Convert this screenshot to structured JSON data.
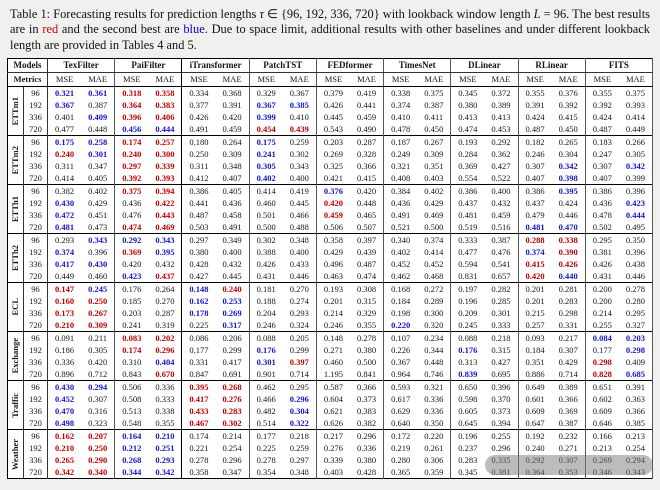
{
  "caption": {
    "segments": [
      {
        "t": "Table 1: Forecasting results for prediction lengths "
      },
      {
        "t": "τ",
        "i": true
      },
      {
        "t": " ∈ {96, 192, 336, 720} with lookback window length "
      },
      {
        "t": "L",
        "i": true
      },
      {
        "t": " = 96. The best results are in "
      },
      {
        "t": "red",
        "c": "#d10000"
      },
      {
        "t": " and the second best are "
      },
      {
        "t": "blue",
        "c": "#0000d6"
      },
      {
        "t": ". Due to space limit, additional results with other baselines and under different lookback length are provided in Tables 4 and 5."
      }
    ]
  },
  "colors": {
    "best": "#c00000",
    "second": "#1414cc"
  },
  "table": {
    "models_label": "Models",
    "metrics_label": "Metrics",
    "mse_label": "MSE",
    "mae_label": "MAE",
    "models": [
      "TexFilter",
      "PaiFilter",
      "iTransformer",
      "PatchTST",
      "FEDformer",
      "TimesNet",
      "DLinear",
      "RLinear",
      "FITS"
    ],
    "ours_count": 2,
    "datasets": [
      {
        "name": "ETTm1",
        "rows": [
          {
            "horizon": "96",
            "values": [
              "0.321",
              "0.361",
              "0.318",
              "0.358",
              "0.334",
              "0.368",
              "0.329",
              "0.367",
              "0.379",
              "0.419",
              "0.338",
              "0.375",
              "0.345",
              "0.372",
              "0.355",
              "0.376",
              "0.355",
              "0.375"
            ]
          },
          {
            "horizon": "192",
            "values": [
              "0.367",
              "0.387",
              "0.364",
              "0.383",
              "0.377",
              "0.391",
              "0.367",
              "0.385",
              "0.426",
              "0.441",
              "0.374",
              "0.387",
              "0.380",
              "0.389",
              "0.391",
              "0.392",
              "0.392",
              "0.393"
            ]
          },
          {
            "horizon": "336",
            "values": [
              "0.401",
              "0.409",
              "0.396",
              "0.406",
              "0.426",
              "0.420",
              "0.399",
              "0.410",
              "0.445",
              "0.459",
              "0.410",
              "0.411",
              "0.413",
              "0.413",
              "0.424",
              "0.415",
              "0.424",
              "0.414"
            ]
          },
          {
            "horizon": "720",
            "values": [
              "0.477",
              "0.448",
              "0.456",
              "0.444",
              "0.491",
              "0.459",
              "0.454",
              "0.439",
              "0.543",
              "0.490",
              "0.478",
              "0.450",
              "0.474",
              "0.453",
              "0.487",
              "0.450",
              "0.487",
              "0.449"
            ]
          }
        ]
      },
      {
        "name": "ETTm2",
        "rows": [
          {
            "horizon": "96",
            "values": [
              "0.175",
              "0.258",
              "0.174",
              "0.257",
              "0.180",
              "0.264",
              "0.175",
              "0.259",
              "0.203",
              "0.287",
              "0.187",
              "0.267",
              "0.193",
              "0.292",
              "0.182",
              "0.265",
              "0.183",
              "0.266"
            ]
          },
          {
            "horizon": "192",
            "values": [
              "0.240",
              "0.301",
              "0.240",
              "0.300",
              "0.250",
              "0.309",
              "0.241",
              "0.302",
              "0.269",
              "0.328",
              "0.249",
              "0.309",
              "0.284",
              "0.362",
              "0.246",
              "0.304",
              "0.247",
              "0.305"
            ]
          },
          {
            "horizon": "336",
            "values": [
              "0.311",
              "0.347",
              "0.297",
              "0.339",
              "0.311",
              "0.348",
              "0.305",
              "0.343",
              "0.325",
              "0.366",
              "0.321",
              "0.351",
              "0.369",
              "0.427",
              "0.307",
              "0.342",
              "0.307",
              "0.342"
            ]
          },
          {
            "horizon": "720",
            "values": [
              "0.414",
              "0.405",
              "0.392",
              "0.393",
              "0.412",
              "0.407",
              "0.402",
              "0.400",
              "0.421",
              "0.415",
              "0.408",
              "0.403",
              "0.554",
              "0.522",
              "0.407",
              "0.398",
              "0.407",
              "0.399"
            ]
          }
        ]
      },
      {
        "name": "ETTh1",
        "rows": [
          {
            "horizon": "96",
            "values": [
              "0.382",
              "0.402",
              "0.375",
              "0.394",
              "0.386",
              "0.405",
              "0.414",
              "0.419",
              "0.376",
              "0.420",
              "0.384",
              "0.402",
              "0.386",
              "0.400",
              "0.386",
              "0.395",
              "0.386",
              "0.396"
            ]
          },
          {
            "horizon": "192",
            "values": [
              "0.430",
              "0.429",
              "0.436",
              "0.422",
              "0.441",
              "0.436",
              "0.460",
              "0.445",
              "0.420",
              "0.448",
              "0.436",
              "0.429",
              "0.437",
              "0.432",
              "0.437",
              "0.424",
              "0.436",
              "0.423"
            ]
          },
          {
            "horizon": "336",
            "values": [
              "0.472",
              "0.451",
              "0.476",
              "0.443",
              "0.487",
              "0.458",
              "0.501",
              "0.466",
              "0.459",
              "0.465",
              "0.491",
              "0.469",
              "0.481",
              "0.459",
              "0.479",
              "0.446",
              "0.478",
              "0.444"
            ]
          },
          {
            "horizon": "720",
            "values": [
              "0.481",
              "0.473",
              "0.474",
              "0.469",
              "0.503",
              "0.491",
              "0.500",
              "0.488",
              "0.506",
              "0.507",
              "0.521",
              "0.500",
              "0.519",
              "0.516",
              "0.481",
              "0.470",
              "0.502",
              "0.495"
            ]
          }
        ]
      },
      {
        "name": "ETTh2",
        "rows": [
          {
            "horizon": "96",
            "values": [
              "0.293",
              "0.343",
              "0.292",
              "0.343",
              "0.297",
              "0.349",
              "0.302",
              "0.348",
              "0.358",
              "0.397",
              "0.340",
              "0.374",
              "0.333",
              "0.387",
              "0.288",
              "0.338",
              "0.295",
              "0.350"
            ]
          },
          {
            "horizon": "192",
            "values": [
              "0.374",
              "0.396",
              "0.369",
              "0.395",
              "0.380",
              "0.400",
              "0.388",
              "0.400",
              "0.429",
              "0.439",
              "0.402",
              "0.414",
              "0.477",
              "0.476",
              "0.374",
              "0.390",
              "0.381",
              "0.396"
            ]
          },
          {
            "horizon": "336",
            "values": [
              "0.417",
              "0.430",
              "0.420",
              "0.432",
              "0.428",
              "0.432",
              "0.426",
              "0.433",
              "0.496",
              "0.487",
              "0.452",
              "0.452",
              "0.594",
              "0.541",
              "0.415",
              "0.426",
              "0.426",
              "0.438"
            ]
          },
          {
            "horizon": "720",
            "values": [
              "0.449",
              "0.460",
              "0.423",
              "0.437",
              "0.427",
              "0.445",
              "0.431",
              "0.446",
              "0.463",
              "0.474",
              "0.462",
              "0.468",
              "0.831",
              "0.657",
              "0.420",
              "0.440",
              "0.431",
              "0.446"
            ]
          }
        ]
      },
      {
        "name": "ECL",
        "rows": [
          {
            "horizon": "96",
            "values": [
              "0.147",
              "0.245",
              "0.176",
              "0.264",
              "0.148",
              "0.240",
              "0.181",
              "0.270",
              "0.193",
              "0.308",
              "0.168",
              "0.272",
              "0.197",
              "0.282",
              "0.201",
              "0.281",
              "0.200",
              "0.278"
            ]
          },
          {
            "horizon": "192",
            "values": [
              "0.160",
              "0.250",
              "0.185",
              "0.270",
              "0.162",
              "0.253",
              "0.188",
              "0.274",
              "0.201",
              "0.315",
              "0.184",
              "0.289",
              "0.196",
              "0.285",
              "0.201",
              "0.283",
              "0.200",
              "0.280"
            ]
          },
          {
            "horizon": "336",
            "values": [
              "0.173",
              "0.267",
              "0.203",
              "0.287",
              "0.178",
              "0.269",
              "0.204",
              "0.293",
              "0.214",
              "0.329",
              "0.198",
              "0.300",
              "0.209",
              "0.301",
              "0.215",
              "0.298",
              "0.214",
              "0.295"
            ]
          },
          {
            "horizon": "720",
            "values": [
              "0.210",
              "0.309",
              "0.241",
              "0.319",
              "0.225",
              "0.317",
              "0.246",
              "0.324",
              "0.246",
              "0.355",
              "0.220",
              "0.320",
              "0.245",
              "0.333",
              "0.257",
              "0.331",
              "0.255",
              "0.327"
            ]
          }
        ]
      },
      {
        "name": "Exchange",
        "rows": [
          {
            "horizon": "96",
            "values": [
              "0.091",
              "0.211",
              "0.083",
              "0.202",
              "0.086",
              "0.206",
              "0.088",
              "0.205",
              "0.148",
              "0.278",
              "0.107",
              "0.234",
              "0.088",
              "0.218",
              "0.093",
              "0.217",
              "0.084",
              "0.203"
            ]
          },
          {
            "horizon": "192",
            "values": [
              "0.186",
              "0.305",
              "0.174",
              "0.296",
              "0.177",
              "0.299",
              "0.176",
              "0.299",
              "0.271",
              "0.380",
              "0.226",
              "0.344",
              "0.176",
              "0.315",
              "0.184",
              "0.307",
              "0.177",
              "0.298"
            ]
          },
          {
            "horizon": "336",
            "values": [
              "0.336",
              "0.420",
              "0.310",
              "0.404",
              "0.331",
              "0.417",
              "0.301",
              "0.397",
              "0.460",
              "0.500",
              "0.367",
              "0.448",
              "0.313",
              "0.427",
              "0.351",
              "0.429",
              "0.298",
              "0.409"
            ]
          },
          {
            "horizon": "720",
            "values": [
              "0.896",
              "0.712",
              "0.843",
              "0.670",
              "0.847",
              "0.691",
              "0.901",
              "0.714",
              "1.195",
              "0.841",
              "0.964",
              "0.746",
              "0.839",
              "0.695",
              "0.886",
              "0.714",
              "0.828",
              "0.685"
            ]
          }
        ]
      },
      {
        "name": "Traffic",
        "rows": [
          {
            "horizon": "96",
            "values": [
              "0.430",
              "0.294",
              "0.506",
              "0.336",
              "0.395",
              "0.268",
              "0.462",
              "0.295",
              "0.587",
              "0.366",
              "0.593",
              "0.321",
              "0.650",
              "0.396",
              "0.649",
              "0.389",
              "0.651",
              "0.391"
            ]
          },
          {
            "horizon": "192",
            "values": [
              "0.452",
              "0.307",
              "0.508",
              "0.333",
              "0.417",
              "0.276",
              "0.466",
              "0.296",
              "0.604",
              "0.373",
              "0.617",
              "0.336",
              "0.598",
              "0.370",
              "0.601",
              "0.366",
              "0.602",
              "0.363"
            ]
          },
          {
            "horizon": "336",
            "values": [
              "0.470",
              "0.316",
              "0.513",
              "0.338",
              "0.433",
              "0.283",
              "0.482",
              "0.304",
              "0.621",
              "0.383",
              "0.629",
              "0.336",
              "0.605",
              "0.373",
              "0.609",
              "0.369",
              "0.609",
              "0.366"
            ]
          },
          {
            "horizon": "720",
            "values": [
              "0.498",
              "0.323",
              "0.548",
              "0.355",
              "0.467",
              "0.302",
              "0.514",
              "0.322",
              "0.626",
              "0.382",
              "0.640",
              "0.350",
              "0.645",
              "0.394",
              "0.647",
              "0.387",
              "0.646",
              "0.385"
            ]
          }
        ]
      },
      {
        "name": "Weather",
        "rows": [
          {
            "horizon": "96",
            "values": [
              "0.162",
              "0.207",
              "0.164",
              "0.210",
              "0.174",
              "0.214",
              "0.177",
              "0.218",
              "0.217",
              "0.296",
              "0.172",
              "0.220",
              "0.196",
              "0.255",
              "0.192",
              "0.232",
              "0.166",
              "0.213"
            ]
          },
          {
            "horizon": "192",
            "values": [
              "0.210",
              "0.250",
              "0.212",
              "0.251",
              "0.221",
              "0.254",
              "0.225",
              "0.259",
              "0.276",
              "0.336",
              "0.219",
              "0.261",
              "0.237",
              "0.296",
              "0.240",
              "0.271",
              "0.213",
              "0.254"
            ]
          },
          {
            "horizon": "336",
            "values": [
              "0.265",
              "0.290",
              "0.268",
              "0.293",
              "0.278",
              "0.296",
              "0.278",
              "0.297",
              "0.339",
              "0.380",
              "0.280",
              "0.306",
              "0.283",
              "0.335",
              "0.292",
              "0.307",
              "0.269",
              "0.294"
            ]
          },
          {
            "horizon": "720",
            "values": [
              "0.342",
              "0.340",
              "0.344",
              "0.342",
              "0.358",
              "0.347",
              "0.354",
              "0.348",
              "0.403",
              "0.428",
              "0.365",
              "0.359",
              "0.345",
              "0.381",
              "0.364",
              "0.353",
              "0.346",
              "0.343"
            ]
          }
        ]
      }
    ]
  }
}
